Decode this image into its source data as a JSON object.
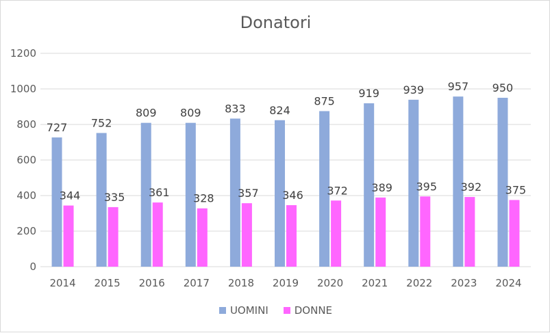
{
  "chart_data": {
    "type": "bar",
    "title": "Donatori",
    "categories": [
      "2014",
      "2015",
      "2016",
      "2017",
      "2018",
      "2019",
      "2020",
      "2021",
      "2022",
      "2023",
      "2024"
    ],
    "series": [
      {
        "name": "UOMINI",
        "color": "#8eaadb",
        "values": [
          727,
          752,
          809,
          809,
          833,
          824,
          875,
          919,
          939,
          957,
          950
        ]
      },
      {
        "name": "DONNE",
        "color": "#ff66ff",
        "values": [
          344,
          335,
          361,
          328,
          357,
          346,
          372,
          389,
          395,
          392,
          375
        ]
      }
    ],
    "ylim": [
      0,
      1200
    ],
    "yticks": [
      0,
      200,
      400,
      600,
      800,
      1000,
      1200
    ],
    "grid": true,
    "legend": "bottom",
    "data_labels": true
  }
}
